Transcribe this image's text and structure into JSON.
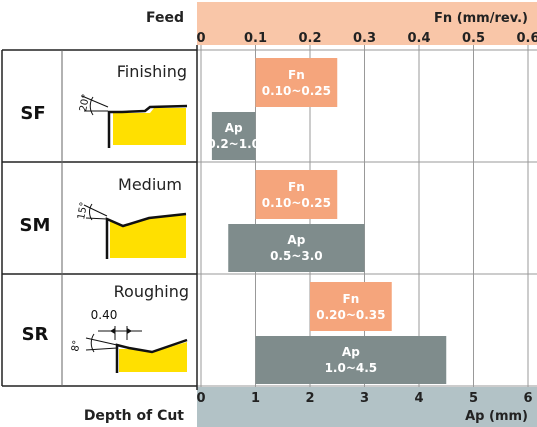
{
  "header": {
    "feed_label": "Feed",
    "fn_axis_label": "Fn (mm/rev.)",
    "fn_ticks": [
      "0",
      "0.1",
      "0.2",
      "0.3",
      "0.4",
      "0.5",
      "0.6"
    ]
  },
  "footer": {
    "doc_label": "Depth of Cut",
    "ap_axis_label": "Ap (mm)",
    "ap_ticks": [
      "0",
      "1",
      "2",
      "3",
      "4",
      "5",
      "6"
    ]
  },
  "colors": {
    "fn_header": "#f9c6a8",
    "ap_footer": "#b2c2c6",
    "fn_bar": "#f5a57c",
    "ap_bar": "#7f8c8c",
    "insert_yellow": "#ffe000",
    "grid": "#999999"
  },
  "rows": [
    {
      "code": "SF",
      "name": "Finishing",
      "angle": "20°",
      "fn_label": "Fn",
      "fn_range": "0.10~0.25",
      "ap_label": "Ap",
      "ap_range": "0.2~1.0"
    },
    {
      "code": "SM",
      "name": "Medium",
      "angle": "15°",
      "fn_label": "Fn",
      "fn_range": "0.10~0.25",
      "ap_label": "Ap",
      "ap_range": "0.5~3.0"
    },
    {
      "code": "SR",
      "name": "Roughing",
      "angle": "8°",
      "land": "0.40",
      "fn_label": "Fn",
      "fn_range": "0.20~0.35",
      "ap_label": "Ap",
      "ap_range": "1.0~4.5"
    }
  ],
  "chart_data": {
    "type": "bar",
    "categories": [
      "SF",
      "SM",
      "SR"
    ],
    "series": [
      {
        "name": "Fn (mm/rev.)",
        "ranges": [
          [
            0.1,
            0.25
          ],
          [
            0.1,
            0.25
          ],
          [
            0.2,
            0.35
          ]
        ]
      },
      {
        "name": "Ap (mm)",
        "ranges": [
          [
            0.2,
            1.0
          ],
          [
            0.5,
            3.0
          ],
          [
            1.0,
            4.5
          ]
        ]
      }
    ],
    "fn_axis": {
      "label": "Fn (mm/rev.)",
      "range": [
        0,
        0.6
      ],
      "ticks": [
        0,
        0.1,
        0.2,
        0.3,
        0.4,
        0.5,
        0.6
      ],
      "position": "top"
    },
    "ap_axis": {
      "label": "Ap (mm)",
      "range": [
        0,
        6
      ],
      "ticks": [
        0,
        1,
        2,
        3,
        4,
        5,
        6
      ],
      "position": "bottom"
    },
    "grid": true
  }
}
